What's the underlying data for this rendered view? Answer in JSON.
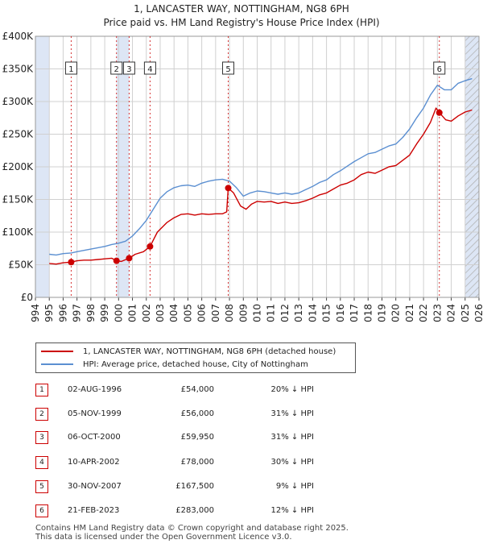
{
  "title_line1": "1, LANCASTER WAY, NOTTINGHAM, NG8 6PH",
  "title_line2": "Price paid vs. HM Land Registry's House Price Index (HPI)",
  "colors": {
    "red": "#cc0000",
    "blue": "#5b8fd1",
    "shade": "#dde6f5",
    "grid": "#d0d0d0"
  },
  "legend": {
    "red_label": "1, LANCASTER WAY, NOTTINGHAM, NG8 6PH (detached house)",
    "blue_label": "HPI: Average price, detached house, City of Nottingham"
  },
  "transactions": [
    {
      "num": "1",
      "date": "02-AUG-1996",
      "price": "£54,000",
      "hpi": "20% ↓ HPI"
    },
    {
      "num": "2",
      "date": "05-NOV-1999",
      "price": "£56,000",
      "hpi": "31% ↓ HPI"
    },
    {
      "num": "3",
      "date": "06-OCT-2000",
      "price": "£59,950",
      "hpi": "31% ↓ HPI"
    },
    {
      "num": "4",
      "date": "10-APR-2002",
      "price": "£78,000",
      "hpi": "30% ↓ HPI"
    },
    {
      "num": "5",
      "date": "30-NOV-2007",
      "price": "£167,500",
      "hpi": "9% ↓ HPI"
    },
    {
      "num": "6",
      "date": "21-FEB-2023",
      "price": "£283,000",
      "hpi": "12% ↓ HPI"
    }
  ],
  "footer_line1": "Contains HM Land Registry data © Crown copyright and database right 2025.",
  "footer_line2": "This data is licensed under the Open Government Licence v3.0.",
  "chart_data": {
    "type": "line",
    "title": "1, LANCASTER WAY, NOTTINGHAM, NG8 6PH",
    "subtitle": "Price paid vs. HM Land Registry's House Price Index (HPI)",
    "xlabel": "",
    "ylabel": "",
    "xlim": [
      1994,
      2026
    ],
    "ylim": [
      0,
      400000
    ],
    "y_ticks": [
      {
        "value": 0,
        "label": "£0"
      },
      {
        "value": 50000,
        "label": "£50K"
      },
      {
        "value": 100000,
        "label": "£100K"
      },
      {
        "value": 150000,
        "label": "£150K"
      },
      {
        "value": 200000,
        "label": "£200K"
      },
      {
        "value": 250000,
        "label": "£250K"
      },
      {
        "value": 300000,
        "label": "£300K"
      },
      {
        "value": 350000,
        "label": "£350K"
      },
      {
        "value": 400000,
        "label": "£400K"
      }
    ],
    "x_ticks": [
      "1994",
      "1995",
      "1996",
      "1997",
      "1998",
      "1999",
      "2000",
      "2001",
      "2002",
      "2003",
      "2004",
      "2005",
      "2006",
      "2007",
      "2008",
      "2009",
      "2010",
      "2011",
      "2012",
      "2013",
      "2014",
      "2015",
      "2016",
      "2017",
      "2018",
      "2019",
      "2020",
      "2021",
      "2022",
      "2023",
      "2024",
      "2025",
      "2026"
    ],
    "shaded_ranges": [
      [
        1994,
        1995
      ],
      [
        1999.85,
        2000.76
      ],
      [
        2025,
        2026
      ]
    ],
    "hatched_ranges": [
      [
        2025,
        2026
      ]
    ],
    "sale_markers": [
      {
        "label": "1",
        "x": 1996.58,
        "y": 54000
      },
      {
        "label": "2",
        "x": 1999.85,
        "y": 56000
      },
      {
        "label": "3",
        "x": 2000.76,
        "y": 59950
      },
      {
        "label": "4",
        "x": 2002.27,
        "y": 78000
      },
      {
        "label": "5",
        "x": 2007.91,
        "y": 167500
      },
      {
        "label": "6",
        "x": 2023.14,
        "y": 283000
      }
    ],
    "series": [
      {
        "name": "1, LANCASTER WAY, NOTTINGHAM, NG8 6PH (detached house)",
        "x": [
          1995.0,
          1995.5,
          1996.0,
          1996.58,
          1997.0,
          1997.5,
          1998.0,
          1998.5,
          1999.0,
          1999.5,
          1999.85,
          2000.2,
          2000.76,
          2001.2,
          2001.8,
          2002.27,
          2002.8,
          2003.5,
          2004.0,
          2004.5,
          2005.0,
          2005.5,
          2006.0,
          2006.5,
          2007.0,
          2007.5,
          2007.8,
          2007.91,
          2008.3,
          2008.8,
          2009.2,
          2009.6,
          2010.0,
          2010.5,
          2011.0,
          2011.5,
          2012.0,
          2012.5,
          2013.0,
          2013.5,
          2014.0,
          2014.5,
          2015.0,
          2015.5,
          2016.0,
          2016.5,
          2017.0,
          2017.5,
          2018.0,
          2018.5,
          2019.0,
          2019.5,
          2020.0,
          2020.5,
          2021.0,
          2021.5,
          2022.0,
          2022.5,
          2022.9,
          2023.14,
          2023.6,
          2024.0,
          2024.5,
          2025.0,
          2025.5
        ],
        "y": [
          52000,
          51000,
          53000,
          54000,
          56000,
          57000,
          57000,
          58000,
          59000,
          60000,
          56000,
          55000,
          59950,
          66000,
          70000,
          78000,
          100000,
          115000,
          122000,
          127000,
          128000,
          126000,
          128000,
          127000,
          128000,
          128000,
          131000,
          167500,
          160000,
          140000,
          135000,
          143000,
          147000,
          146000,
          147000,
          144000,
          146000,
          144000,
          145000,
          148000,
          152000,
          157000,
          160000,
          166000,
          172000,
          175000,
          180000,
          188000,
          192000,
          190000,
          195000,
          200000,
          202000,
          210000,
          218000,
          235000,
          250000,
          268000,
          290000,
          283000,
          272000,
          270000,
          278000,
          284000,
          287000
        ]
      },
      {
        "name": "HPI: Average price, detached house, City of Nottingham",
        "x": [
          1995.0,
          1995.5,
          1996.0,
          1996.58,
          1997.0,
          1997.5,
          1998.0,
          1998.5,
          1999.0,
          1999.5,
          2000.0,
          2000.5,
          2001.0,
          2001.5,
          2002.0,
          2002.5,
          2003.0,
          2003.5,
          2004.0,
          2004.5,
          2005.0,
          2005.5,
          2006.0,
          2006.5,
          2007.0,
          2007.5,
          2008.0,
          2008.5,
          2009.0,
          2009.5,
          2010.0,
          2010.5,
          2011.0,
          2011.5,
          2012.0,
          2012.5,
          2013.0,
          2013.5,
          2014.0,
          2014.5,
          2015.0,
          2015.5,
          2016.0,
          2016.5,
          2017.0,
          2017.5,
          2018.0,
          2018.5,
          2019.0,
          2019.5,
          2020.0,
          2020.5,
          2021.0,
          2021.5,
          2022.0,
          2022.5,
          2023.0,
          2023.5,
          2024.0,
          2024.5,
          2025.0,
          2025.5
        ],
        "y": [
          66000,
          65000,
          67000,
          68000,
          70000,
          72000,
          74000,
          76000,
          78000,
          81000,
          83000,
          86000,
          94000,
          105000,
          118000,
          135000,
          152000,
          162000,
          168000,
          171000,
          172000,
          170000,
          175000,
          178000,
          180000,
          181000,
          178000,
          168000,
          155000,
          160000,
          163000,
          162000,
          160000,
          158000,
          160000,
          158000,
          160000,
          165000,
          170000,
          176000,
          180000,
          188000,
          194000,
          201000,
          208000,
          214000,
          220000,
          222000,
          227000,
          232000,
          235000,
          245000,
          258000,
          275000,
          290000,
          310000,
          325000,
          318000,
          318000,
          328000,
          332000,
          335000
        ]
      }
    ]
  }
}
